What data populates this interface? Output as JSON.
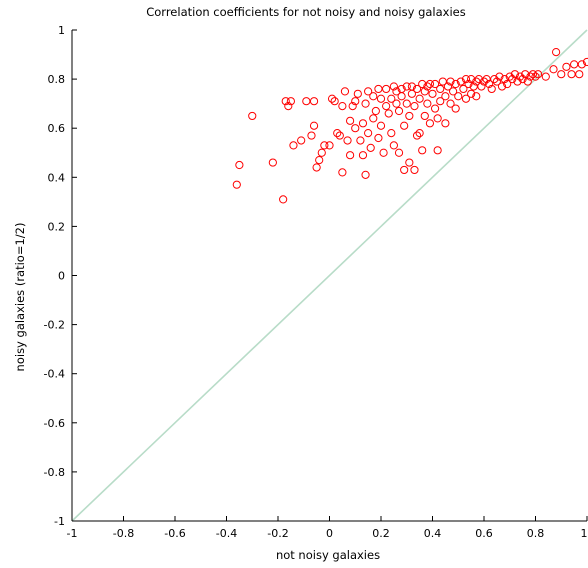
{
  "chart_data": {
    "type": "scatter",
    "title": "Correlation coefficients for not noisy and noisy galaxies",
    "xlabel": "not noisy galaxies",
    "ylabel": "noisy galaxies (ratio=1/2)",
    "xlim": [
      -1,
      1
    ],
    "ylim": [
      -1,
      1
    ],
    "xticks": [
      -1,
      -0.8,
      -0.6,
      -0.4,
      -0.2,
      0,
      0.2,
      0.4,
      0.6,
      0.8,
      1
    ],
    "xtick_labels": [
      "-1",
      "-0.8",
      "-0.6",
      "-0.4",
      "-0.2",
      "0",
      "0.2",
      "0.4",
      "0.6",
      "0.8",
      "1"
    ],
    "yticks": [
      -1,
      -0.8,
      -0.6,
      -0.4,
      -0.2,
      0,
      0.2,
      0.4,
      0.6,
      0.8,
      1
    ],
    "ytick_labels": [
      "-1",
      "-0.8",
      "-0.6",
      "-0.4",
      "-0.2",
      "0",
      "0.2",
      "0.4",
      "0.6",
      "0.8",
      "1"
    ],
    "grid": false,
    "marker": "circle-open",
    "marker_color": "#ff0000",
    "reference_line": {
      "type": "y=x",
      "color": "#b8dcc8"
    },
    "series": [
      {
        "points": [
          [
            -0.36,
            0.37
          ],
          [
            -0.35,
            0.45
          ],
          [
            -0.3,
            0.65
          ],
          [
            -0.22,
            0.46
          ],
          [
            -0.18,
            0.31
          ],
          [
            -0.17,
            0.71
          ],
          [
            -0.16,
            0.69
          ],
          [
            -0.15,
            0.71
          ],
          [
            -0.14,
            0.53
          ],
          [
            -0.11,
            0.55
          ],
          [
            -0.09,
            0.71
          ],
          [
            -0.07,
            0.57
          ],
          [
            -0.06,
            0.61
          ],
          [
            -0.06,
            0.71
          ],
          [
            -0.05,
            0.44
          ],
          [
            -0.04,
            0.47
          ],
          [
            -0.03,
            0.5
          ],
          [
            -0.02,
            0.53
          ],
          [
            0.0,
            0.53
          ],
          [
            0.01,
            0.72
          ],
          [
            0.02,
            0.71
          ],
          [
            0.03,
            0.58
          ],
          [
            0.04,
            0.57
          ],
          [
            0.05,
            0.42
          ],
          [
            0.05,
            0.69
          ],
          [
            0.06,
            0.75
          ],
          [
            0.07,
            0.55
          ],
          [
            0.08,
            0.49
          ],
          [
            0.08,
            0.63
          ],
          [
            0.09,
            0.69
          ],
          [
            0.1,
            0.71
          ],
          [
            0.1,
            0.6
          ],
          [
            0.11,
            0.74
          ],
          [
            0.12,
            0.55
          ],
          [
            0.13,
            0.49
          ],
          [
            0.13,
            0.62
          ],
          [
            0.14,
            0.7
          ],
          [
            0.14,
            0.41
          ],
          [
            0.15,
            0.75
          ],
          [
            0.15,
            0.58
          ],
          [
            0.16,
            0.52
          ],
          [
            0.17,
            0.64
          ],
          [
            0.17,
            0.73
          ],
          [
            0.18,
            0.67
          ],
          [
            0.19,
            0.56
          ],
          [
            0.19,
            0.76
          ],
          [
            0.2,
            0.72
          ],
          [
            0.2,
            0.61
          ],
          [
            0.21,
            0.5
          ],
          [
            0.22,
            0.69
          ],
          [
            0.22,
            0.76
          ],
          [
            0.23,
            0.66
          ],
          [
            0.24,
            0.58
          ],
          [
            0.24,
            0.72
          ],
          [
            0.25,
            0.77
          ],
          [
            0.25,
            0.53
          ],
          [
            0.26,
            0.7
          ],
          [
            0.26,
            0.75
          ],
          [
            0.27,
            0.67
          ],
          [
            0.27,
            0.5
          ],
          [
            0.28,
            0.73
          ],
          [
            0.28,
            0.76
          ],
          [
            0.29,
            0.61
          ],
          [
            0.29,
            0.43
          ],
          [
            0.3,
            0.7
          ],
          [
            0.3,
            0.77
          ],
          [
            0.31,
            0.65
          ],
          [
            0.31,
            0.46
          ],
          [
            0.32,
            0.74
          ],
          [
            0.32,
            0.77
          ],
          [
            0.33,
            0.69
          ],
          [
            0.33,
            0.43
          ],
          [
            0.34,
            0.57
          ],
          [
            0.34,
            0.76
          ],
          [
            0.35,
            0.72
          ],
          [
            0.35,
            0.58
          ],
          [
            0.36,
            0.78
          ],
          [
            0.36,
            0.51
          ],
          [
            0.37,
            0.65
          ],
          [
            0.37,
            0.75
          ],
          [
            0.38,
            0.7
          ],
          [
            0.38,
            0.77
          ],
          [
            0.39,
            0.62
          ],
          [
            0.39,
            0.78
          ],
          [
            0.4,
            0.74
          ],
          [
            0.41,
            0.68
          ],
          [
            0.41,
            0.78
          ],
          [
            0.42,
            0.64
          ],
          [
            0.42,
            0.51
          ],
          [
            0.43,
            0.76
          ],
          [
            0.43,
            0.71
          ],
          [
            0.44,
            0.79
          ],
          [
            0.45,
            0.73
          ],
          [
            0.45,
            0.62
          ],
          [
            0.46,
            0.77
          ],
          [
            0.47,
            0.7
          ],
          [
            0.47,
            0.79
          ],
          [
            0.48,
            0.75
          ],
          [
            0.49,
            0.68
          ],
          [
            0.49,
            0.78
          ],
          [
            0.5,
            0.73
          ],
          [
            0.51,
            0.79
          ],
          [
            0.52,
            0.76
          ],
          [
            0.53,
            0.72
          ],
          [
            0.53,
            0.8
          ],
          [
            0.54,
            0.78
          ],
          [
            0.55,
            0.74
          ],
          [
            0.55,
            0.8
          ],
          [
            0.56,
            0.77
          ],
          [
            0.57,
            0.79
          ],
          [
            0.57,
            0.73
          ],
          [
            0.58,
            0.8
          ],
          [
            0.59,
            0.77
          ],
          [
            0.6,
            0.79
          ],
          [
            0.61,
            0.8
          ],
          [
            0.62,
            0.78
          ],
          [
            0.63,
            0.76
          ],
          [
            0.64,
            0.8
          ],
          [
            0.65,
            0.79
          ],
          [
            0.66,
            0.81
          ],
          [
            0.67,
            0.77
          ],
          [
            0.68,
            0.8
          ],
          [
            0.69,
            0.78
          ],
          [
            0.7,
            0.81
          ],
          [
            0.71,
            0.8
          ],
          [
            0.72,
            0.82
          ],
          [
            0.73,
            0.79
          ],
          [
            0.74,
            0.81
          ],
          [
            0.75,
            0.8
          ],
          [
            0.76,
            0.82
          ],
          [
            0.77,
            0.79
          ],
          [
            0.78,
            0.81
          ],
          [
            0.79,
            0.82
          ],
          [
            0.8,
            0.81
          ],
          [
            0.81,
            0.82
          ],
          [
            0.84,
            0.81
          ],
          [
            0.87,
            0.84
          ],
          [
            0.88,
            0.91
          ],
          [
            0.9,
            0.82
          ],
          [
            0.92,
            0.85
          ],
          [
            0.94,
            0.82
          ],
          [
            0.95,
            0.86
          ],
          [
            0.97,
            0.82
          ],
          [
            0.98,
            0.86
          ],
          [
            1.0,
            0.87
          ]
        ]
      }
    ]
  }
}
